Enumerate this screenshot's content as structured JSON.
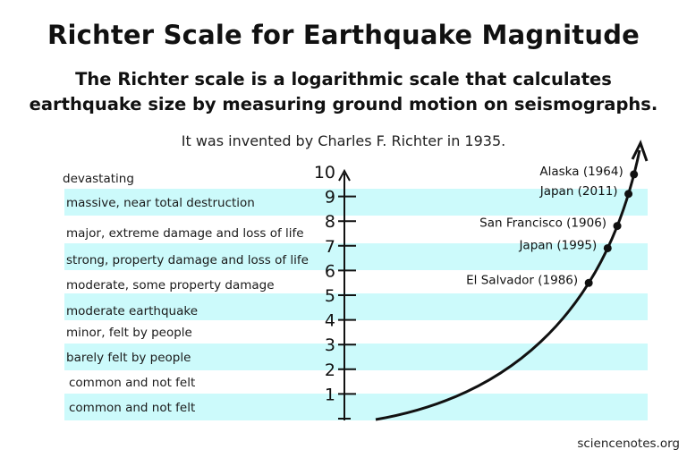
{
  "title": "Richter Scale for Earthquake Magnitude",
  "subtitle_line1": "The Richter scale is a logarithmic scale that calculates",
  "subtitle_line2": "earthquake size by measuring ground motion on seismographs.",
  "invented_note": "It was invented by Charles F. Richter in 1935.",
  "credit": "sciencenotes.org",
  "colors": {
    "band": "#ccfafb",
    "line": "#111111"
  },
  "scale_ticks": [
    "1",
    "2",
    "3",
    "4",
    "5",
    "6",
    "7",
    "8",
    "9",
    "10"
  ],
  "levels": [
    {
      "label": "devastating",
      "shaded": false
    },
    {
      "label": "massive, near total destruction",
      "shaded": true
    },
    {
      "label": "major, extreme damage and loss of life",
      "shaded": false
    },
    {
      "label": "strong, property damage and loss of life",
      "shaded": true
    },
    {
      "label": "moderate, some property damage",
      "shaded": false
    },
    {
      "label": "moderate earthquake",
      "shaded": true
    },
    {
      "label": "minor, felt by people",
      "shaded": false
    },
    {
      "label": "barely felt by people",
      "shaded": true
    },
    {
      "label": "common and not felt",
      "shaded": false
    },
    {
      "label": "common and not felt",
      "shaded": true
    }
  ],
  "earthquakes": [
    {
      "label": "Alaska (1964)",
      "magnitude": 9.9
    },
    {
      "label": "Japan (2011)",
      "magnitude": 9.1
    },
    {
      "label": "San Francisco (1906)",
      "magnitude": 7.8
    },
    {
      "label": "Japan (1995)",
      "magnitude": 6.9
    },
    {
      "label": "El Salvador (1986)",
      "magnitude": 5.5
    }
  ]
}
